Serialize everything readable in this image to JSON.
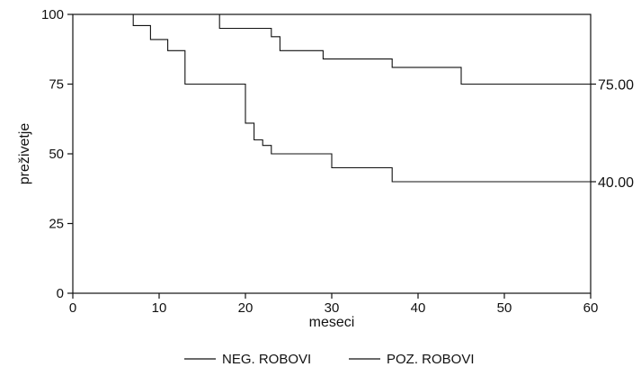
{
  "chart_data": {
    "type": "line",
    "step": true,
    "title": "",
    "xlabel": "meseci",
    "ylabel": "preživetje",
    "xlim": [
      0,
      60
    ],
    "ylim": [
      0,
      100
    ],
    "xticks": [
      "0",
      "10",
      "20",
      "30",
      "40",
      "50",
      "60"
    ],
    "yticks": [
      "0",
      "25",
      "50",
      "75",
      "100"
    ],
    "grid": false,
    "legend_position": "bottom",
    "series": [
      {
        "name": "NEG. ROBOVI",
        "end_label": "75.00",
        "x": [
          0,
          15,
          17,
          22,
          23,
          24,
          29,
          36,
          37,
          44,
          45,
          60
        ],
        "y": [
          100,
          100,
          95,
          95,
          92,
          87,
          84,
          84,
          81,
          81,
          75,
          75
        ]
      },
      {
        "name": "POZ. ROBOVI",
        "end_label": "40.00",
        "x": [
          0,
          6,
          7,
          8,
          9,
          10,
          11,
          13,
          19,
          20,
          21,
          22,
          23,
          29,
          30,
          36,
          37,
          60
        ],
        "y": [
          100,
          100,
          96,
          96,
          91,
          91,
          87,
          75,
          75,
          61,
          55,
          53,
          50,
          50,
          45,
          45,
          40,
          40
        ]
      }
    ]
  }
}
